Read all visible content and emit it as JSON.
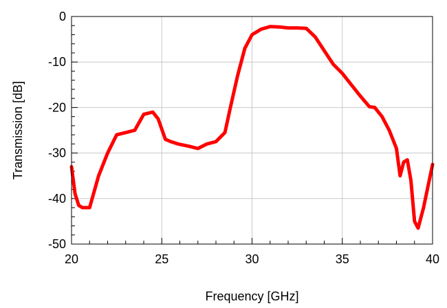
{
  "chart_data": {
    "type": "line",
    "title": "",
    "xlabel": "Frequency [GHz]",
    "ylabel": "Transmission [dB]",
    "xlim": [
      20,
      40
    ],
    "ylim": [
      -50,
      0
    ],
    "grid": true,
    "x_ticks": [
      20,
      25,
      30,
      35,
      40
    ],
    "x_tick_labels": [
      "20",
      "25",
      "30",
      "35",
      "40"
    ],
    "y_ticks": [
      0,
      -10,
      -20,
      -30,
      -40,
      -50
    ],
    "y_tick_labels": [
      "0",
      "-10",
      "-20",
      "-30",
      "-40",
      "-50"
    ],
    "series": [
      {
        "color": "#ff0000",
        "x": [
          20.0,
          20.2,
          20.4,
          20.6,
          21.0,
          21.5,
          22.0,
          22.5,
          23.0,
          23.5,
          24.0,
          24.5,
          24.8,
          25.2,
          25.5,
          25.9,
          26.5,
          27.0,
          27.5,
          28.0,
          28.5,
          28.8,
          29.2,
          29.6,
          30.0,
          30.5,
          31.0,
          31.5,
          32.0,
          32.5,
          33.0,
          33.5,
          34.0,
          34.5,
          35.0,
          35.5,
          36.0,
          36.5,
          36.8,
          37.2,
          37.6,
          38.0,
          38.2,
          38.4,
          38.6,
          38.8,
          39.0,
          39.2,
          39.5,
          40.0
        ],
        "y": [
          -33,
          -39,
          -41.5,
          -42,
          -42,
          -35,
          -30,
          -26,
          -25.5,
          -25,
          -21.5,
          -21,
          -22.5,
          -27,
          -27.5,
          -28,
          -28.5,
          -29,
          -28,
          -27.5,
          -25.5,
          -20,
          -13,
          -7,
          -4,
          -2.8,
          -2.2,
          -2.3,
          -2.5,
          -2.5,
          -2.6,
          -4.5,
          -7.5,
          -10.5,
          -12.5,
          -15,
          -17.5,
          -19.8,
          -20,
          -22,
          -25,
          -29,
          -35,
          -32,
          -31.5,
          -36,
          -45,
          -46.5,
          -42,
          -32.5
        ]
      }
    ]
  }
}
